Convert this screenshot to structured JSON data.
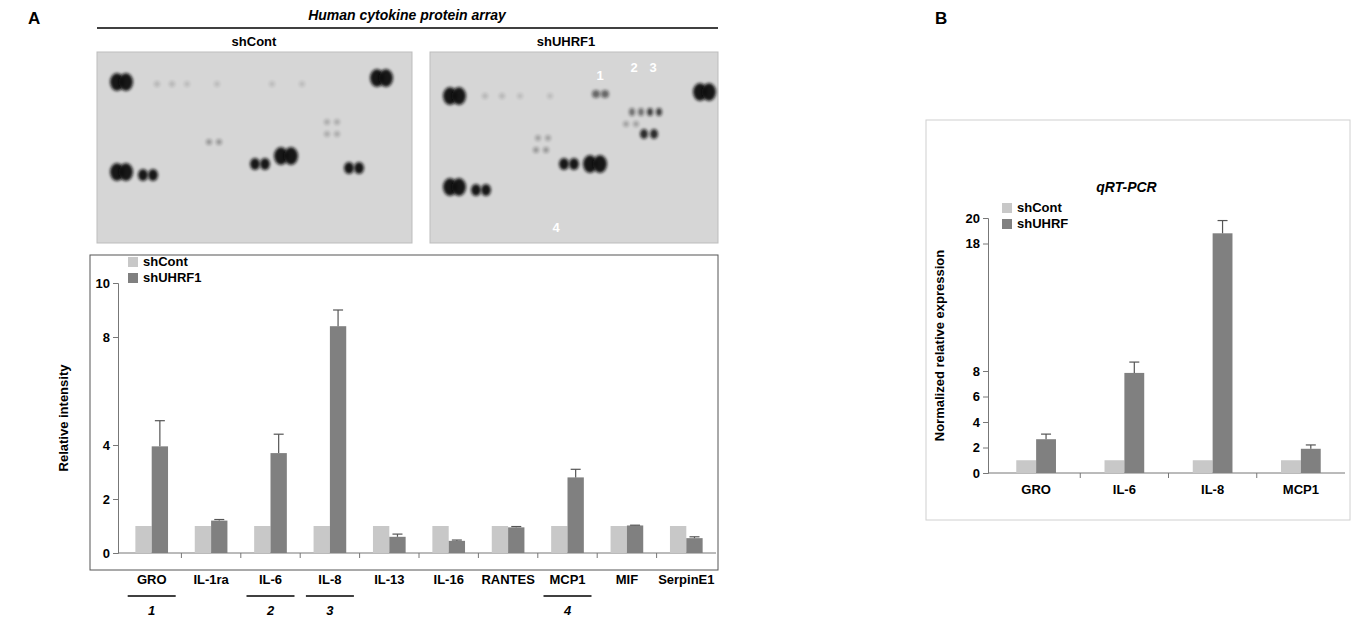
{
  "panel_labels": [
    "A",
    "B"
  ],
  "array": {
    "title": "Human cytokine protein array",
    "panels": [
      "shCont",
      "shUHRF1"
    ],
    "spot_labels": [
      "1",
      "2",
      "3",
      "4"
    ]
  },
  "chart_data": [
    {
      "type": "bar",
      "y_label": "Relative intensity",
      "categories": [
        "GRO",
        "IL-1ra",
        "IL-6",
        "IL-8",
        "IL-13",
        "IL-16",
        "RANTES",
        "MCP1",
        "MIF",
        "SerpinE1"
      ],
      "category_numbers": [
        "1",
        null,
        "2",
        "3",
        null,
        null,
        null,
        "4",
        null,
        null
      ],
      "series": [
        {
          "name": "shCont",
          "color": "#c8c8c8",
          "values": [
            1,
            1,
            1,
            1,
            1,
            1,
            1,
            1,
            1,
            1
          ]
        },
        {
          "name": "shUHRF1",
          "color": "#808080",
          "values": [
            3.95,
            1.2,
            3.7,
            8.4,
            0.6,
            0.45,
            0.95,
            2.8,
            1.02,
            0.55
          ],
          "errors": [
            0.95,
            0.04,
            0.7,
            0.6,
            0.1,
            0.03,
            0.03,
            0.3,
            0.01,
            0.05
          ]
        }
      ],
      "ylim": [
        0,
        10
      ],
      "yticks": [
        0,
        2,
        4,
        8,
        10
      ],
      "legend": "top-left"
    },
    {
      "type": "bar",
      "title": "qRT-PCR",
      "y_label": "Normalized relative expression",
      "categories": [
        "GRO",
        "IL-6",
        "IL-8",
        "MCP1"
      ],
      "series": [
        {
          "name": "shCont",
          "color": "#c8c8c8",
          "values": [
            1,
            1,
            1,
            1
          ]
        },
        {
          "name": "shUHRF",
          "color": "#808080",
          "values": [
            2.65,
            7.85,
            18.8,
            1.9
          ],
          "errors": [
            0.4,
            0.85,
            1.0,
            0.3
          ]
        }
      ],
      "ylim": [
        0,
        20
      ],
      "yticks": [
        0,
        2,
        4,
        6,
        8,
        18,
        20
      ],
      "legend": "top-left"
    }
  ]
}
